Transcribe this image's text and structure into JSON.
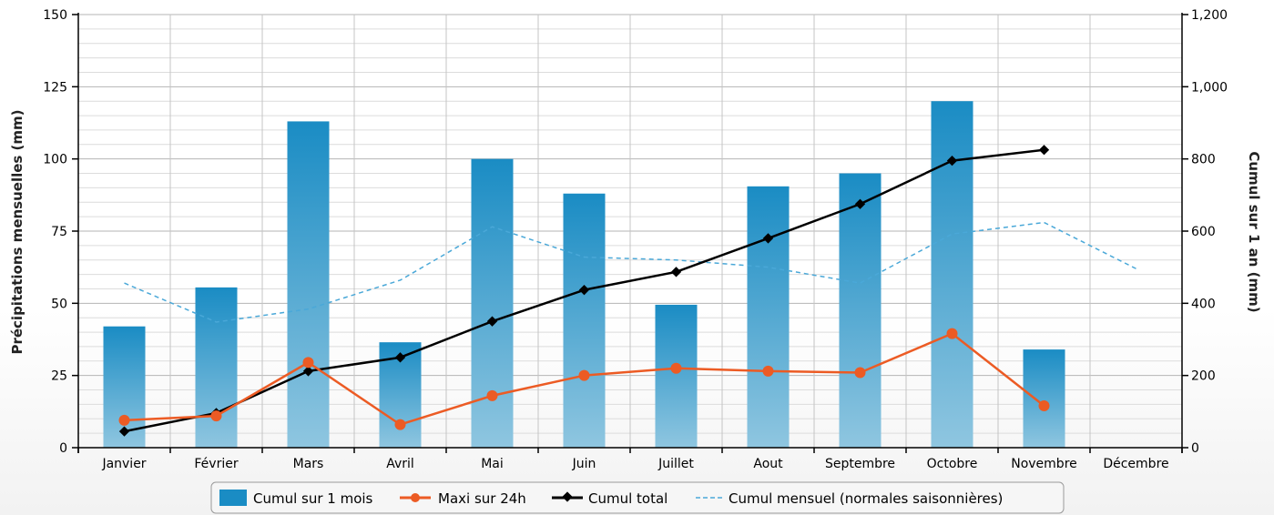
{
  "chart_data": {
    "type": "bar",
    "categories": [
      "Janvier",
      "Février",
      "Mars",
      "Avril",
      "Mai",
      "Juin",
      "Juillet",
      "Aout",
      "Septembre",
      "Octobre",
      "Novembre",
      "Décembre"
    ],
    "ylabel_left": "Précipitations mensuelles (mm)",
    "ylabel_right": "Cumul sur 1 an (mm)",
    "ylim_left": [
      0,
      150
    ],
    "ylim_right": [
      0,
      1200
    ],
    "yticks_left": [
      "0",
      "25",
      "50",
      "75",
      "100",
      "125",
      "150"
    ],
    "yticks_right": [
      "0",
      "200",
      "400",
      "600",
      "800",
      "1,000",
      "1,200"
    ],
    "grid": true,
    "legend_position": "bottom",
    "series": [
      {
        "name": "Cumul sur 1 mois",
        "type": "bar",
        "axis": "left",
        "color": "#1a8cc4",
        "values": [
          42,
          55.5,
          113,
          36.5,
          100,
          88,
          49.5,
          90.5,
          95,
          120,
          34,
          null
        ]
      },
      {
        "name": "Maxi sur 24h",
        "type": "line",
        "axis": "left",
        "color": "#ec5b24",
        "marker": "circle",
        "values": [
          9.5,
          11,
          29.5,
          8,
          18,
          25,
          27.5,
          26.5,
          26,
          39.5,
          14.5,
          null
        ]
      },
      {
        "name": "Cumul total",
        "type": "line",
        "axis": "right",
        "color": "#000000",
        "marker": "diamond",
        "values": [
          45,
          96,
          212,
          250,
          350,
          437,
          487,
          580,
          675,
          795,
          825,
          null
        ]
      },
      {
        "name": "Cumul mensuel (normales saisonnières)",
        "type": "line",
        "axis": "left",
        "color": "#4aa8d8",
        "dashed": true,
        "values": [
          57,
          43.5,
          48,
          58,
          76.5,
          66,
          65,
          62.5,
          57,
          74,
          78,
          62
        ]
      }
    ]
  }
}
